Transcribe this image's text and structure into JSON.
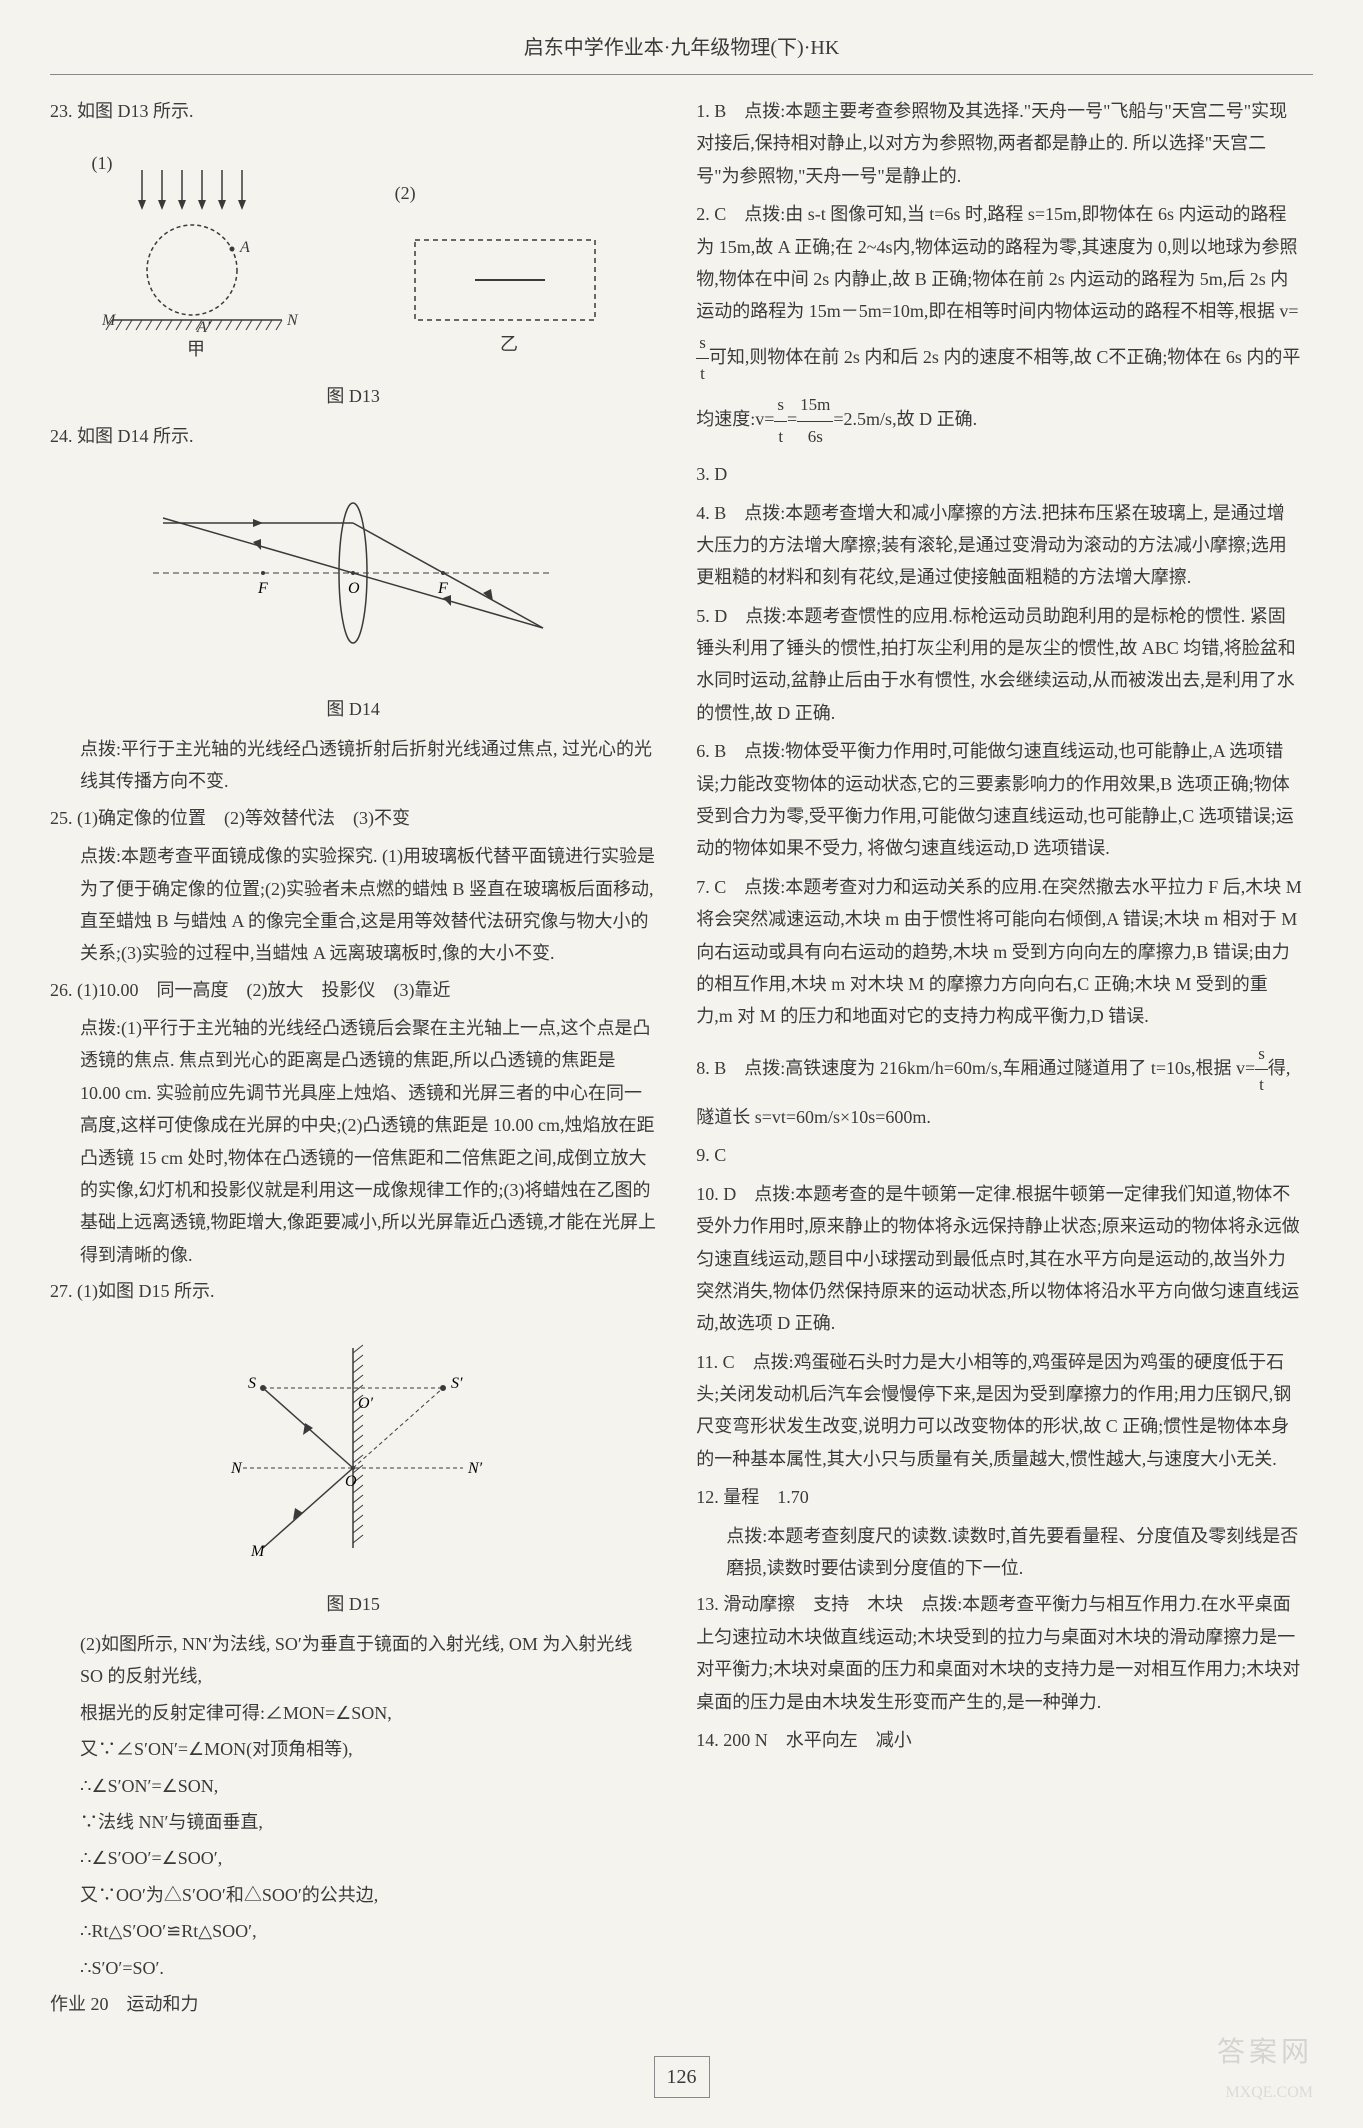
{
  "header": "启东中学作业本·九年级物理(下)·HK",
  "watermark_text": "答案网",
  "sub_watermark": "MXQE.COM",
  "page_number": "126",
  "left_column": [
    {
      "type": "item",
      "text": "23. 如图 D13 所示."
    },
    {
      "type": "figure",
      "id": "D13"
    },
    {
      "type": "label",
      "text": "图 D13"
    },
    {
      "type": "item",
      "text": "24. 如图 D14 所示."
    },
    {
      "type": "figure",
      "id": "D14"
    },
    {
      "type": "label",
      "text": "图 D14"
    },
    {
      "type": "subitem",
      "text": "点拨:平行于主光轴的光线经凸透镜折射后折射光线通过焦点, 过光心的光线其传播方向不变."
    },
    {
      "type": "item",
      "text": "25. (1)确定像的位置　(2)等效替代法　(3)不变"
    },
    {
      "type": "subitem",
      "text": "点拨:本题考查平面镜成像的实验探究. (1)用玻璃板代替平面镜进行实验是为了便于确定像的位置;(2)实验者未点燃的蜡烛 B 竖直在玻璃板后面移动,直至蜡烛 B 与蜡烛 A 的像完全重合,这是用等效替代法研究像与物大小的关系;(3)实验的过程中,当蜡烛 A 远离玻璃板时,像的大小不变."
    },
    {
      "type": "item",
      "text": "26. (1)10.00　同一高度　(2)放大　投影仪　(3)靠近"
    },
    {
      "type": "subitem",
      "text": "点拨:(1)平行于主光轴的光线经凸透镜后会聚在主光轴上一点,这个点是凸透镜的焦点. 焦点到光心的距离是凸透镜的焦距,所以凸透镜的焦距是 10.00 cm. 实验前应先调节光具座上烛焰、透镜和光屏三者的中心在同一高度,这样可使像成在光屏的中央;(2)凸透镜的焦距是 10.00 cm,烛焰放在距凸透镜 15 cm 处时,物体在凸透镜的一倍焦距和二倍焦距之间,成倒立放大的实像,幻灯机和投影仪就是利用这一成像规律工作的;(3)将蜡烛在乙图的基础上远离透镜,物距增大,像距要减小,所以光屏靠近凸透镜,才能在光屏上得到清晰的像."
    },
    {
      "type": "item",
      "text": "27. (1)如图 D15 所示."
    },
    {
      "type": "figure",
      "id": "D15"
    },
    {
      "type": "label",
      "text": "图 D15"
    },
    {
      "type": "subitem",
      "text": "(2)如图所示, NN′为法线, SO′为垂直于镜面的入射光线, OM 为入射光线 SO 的反射光线,"
    },
    {
      "type": "subitem",
      "text": "根据光的反射定律可得:∠MON=∠SON,"
    },
    {
      "type": "subitem",
      "text": "又∵∠S′ON′=∠MON(对顶角相等),"
    },
    {
      "type": "subitem",
      "text": "∴∠S′ON′=∠SON,"
    },
    {
      "type": "subitem",
      "text": "∵法线 NN′与镜面垂直,"
    },
    {
      "type": "subitem",
      "text": "∴∠S′OO′=∠SOO′,"
    },
    {
      "type": "subitem",
      "text": "又∵OO′为△S′OO′和△SOO′的公共边,"
    },
    {
      "type": "subitem",
      "text": "∴Rt△S′OO′≌Rt△SOO′,"
    },
    {
      "type": "subitem",
      "text": "∴S′O′=SO′."
    },
    {
      "type": "item",
      "text": "作业 20　运动和力"
    }
  ],
  "right_column": [
    {
      "type": "item",
      "text": "1. B　点拨:本题主要考查参照物及其选择.\"天舟一号\"飞船与\"天宫二号\"实现对接后,保持相对静止,以对方为参照物,两者都是静止的. 所以选择\"天宫二号\"为参照物,\"天舟一号\"是静止的."
    },
    {
      "type": "item_frac",
      "prefix": "2. C　点拨:由 s-t 图像可知,当 t=6s 时,路程 s=15m,即物体在 6s 内运动的路程为 15m,故 A 正确;在 2~4s内,物体运动的路程为零,其速度为 0,则以地球为参照物,物体在中间 2s 内静止,故 B 正确;物体在前 2s 内运动的路程为 5m,后 2s 内运动的路程为 15m－5m=10m,即在相等时间内物体运动的路程不相等,根据 v=",
      "f1_num": "s",
      "f1_den": "t",
      "mid": "可知,则物体在前 2s 内和后 2s 内的速度不相等,故 C不正确;物体在 6s 内的平均速度:v=",
      "f2_num": "s",
      "f2_den": "t",
      "mid2": "=",
      "f3_num": "15m",
      "f3_den": "6s",
      "suffix": "=2.5m/s,故 D 正确."
    },
    {
      "type": "item",
      "text": "3. D"
    },
    {
      "type": "item",
      "text": "4. B　点拨:本题考查增大和减小摩擦的方法.把抹布压紧在玻璃上, 是通过增大压力的方法增大摩擦;装有滚轮,是通过变滑动为滚动的方法减小摩擦;选用更粗糙的材料和刻有花纹,是通过使接触面粗糙的方法增大摩擦."
    },
    {
      "type": "item",
      "text": "5. D　点拨:本题考查惯性的应用.标枪运动员助跑利用的是标枪的惯性. 紧固锤头利用了锤头的惯性,拍打灰尘利用的是灰尘的惯性,故 ABC 均错,将脸盆和水同时运动,盆静止后由于水有惯性, 水会继续运动,从而被泼出去,是利用了水的惯性,故 D 正确."
    },
    {
      "type": "item",
      "text": "6. B　点拨:物体受平衡力作用时,可能做匀速直线运动,也可能静止,A 选项错误;力能改变物体的运动状态,它的三要素影响力的作用效果,B 选项正确;物体受到合力为零,受平衡力作用,可能做匀速直线运动,也可能静止,C 选项错误;运动的物体如果不受力, 将做匀速直线运动,D 选项错误."
    },
    {
      "type": "item",
      "text": "7. C　点拨:本题考查对力和运动关系的应用.在突然撤去水平拉力 F 后,木块 M 将会突然减速运动,木块 m 由于惯性将可能向右倾倒,A 错误;木块 m 相对于 M 向右运动或具有向右运动的趋势,木块 m 受到方向向左的摩擦力,B 错误;由力的相互作用,木块 m 对木块 M 的摩擦力方向向右,C 正确;木块 M 受到的重力,m 对 M 的压力和地面对它的支持力构成平衡力,D 错误."
    },
    {
      "type": "item_frac2",
      "prefix": "8. B　点拨:高铁速度为 216km/h=60m/s,车厢通过隧道用了 t=10s,根据 v=",
      "f1_num": "s",
      "f1_den": "t",
      "suffix": "得,隧道长 s=vt=60m/s×10s=600m."
    },
    {
      "type": "item",
      "text": "9. C"
    },
    {
      "type": "item",
      "text": "10. D　点拨:本题考查的是牛顿第一定律.根据牛顿第一定律我们知道,物体不受外力作用时,原来静止的物体将永远保持静止状态;原来运动的物体将永远做匀速直线运动,题目中小球摆动到最低点时,其在水平方向是运动的,故当外力突然消失,物体仍然保持原来的运动状态,所以物体将沿水平方向做匀速直线运动,故选项 D 正确."
    },
    {
      "type": "item",
      "text": "11. C　点拨:鸡蛋碰石头时力是大小相等的,鸡蛋碎是因为鸡蛋的硬度低于石头;关闭发动机后汽车会慢慢停下来,是因为受到摩擦力的作用;用力压钢尺,钢尺变弯形状发生改变,说明力可以改变物体的形状,故 C 正确;惯性是物体本身的一种基本属性,其大小只与质量有关,质量越大,惯性越大,与速度大小无关."
    },
    {
      "type": "item",
      "text": "12. 量程　1.70"
    },
    {
      "type": "subitem",
      "text": "点拨:本题考查刻度尺的读数.读数时,首先要看量程、分度值及零刻线是否磨损,读数时要估读到分度值的下一位."
    },
    {
      "type": "item",
      "text": "13. 滑动摩擦　支持　木块　点拨:本题考查平衡力与相互作用力.在水平桌面上匀速拉动木块做直线运动;木块受到的拉力与桌面对木块的滑动摩擦力是一对平衡力;木块对桌面的压力和桌面对木块的支持力是一对相互作用力;木块对桌面的压力是由木块发生形变而产生的,是一种弹力."
    },
    {
      "type": "item",
      "text": "14. 200 N　水平向左　减小"
    }
  ],
  "figure_D13": {
    "arrow_color": "#3a3a3a",
    "line_color": "#3a3a3a",
    "labels": {
      "left": "(1)",
      "right": "(2)",
      "M": "M",
      "N": "N",
      "A": "A",
      "Ap": "A′",
      "jia": "甲",
      "yi": "乙"
    }
  },
  "figure_D14": {
    "line_color": "#3a3a3a",
    "labels": {
      "F1": "F",
      "O": "O",
      "F2": "F"
    }
  },
  "figure_D15": {
    "line_color": "#3a3a3a",
    "labels": {
      "S": "S",
      "Sp": "S′",
      "Op": "O′",
      "N": "N",
      "Np": "N′",
      "O": "O",
      "M": "M"
    }
  }
}
